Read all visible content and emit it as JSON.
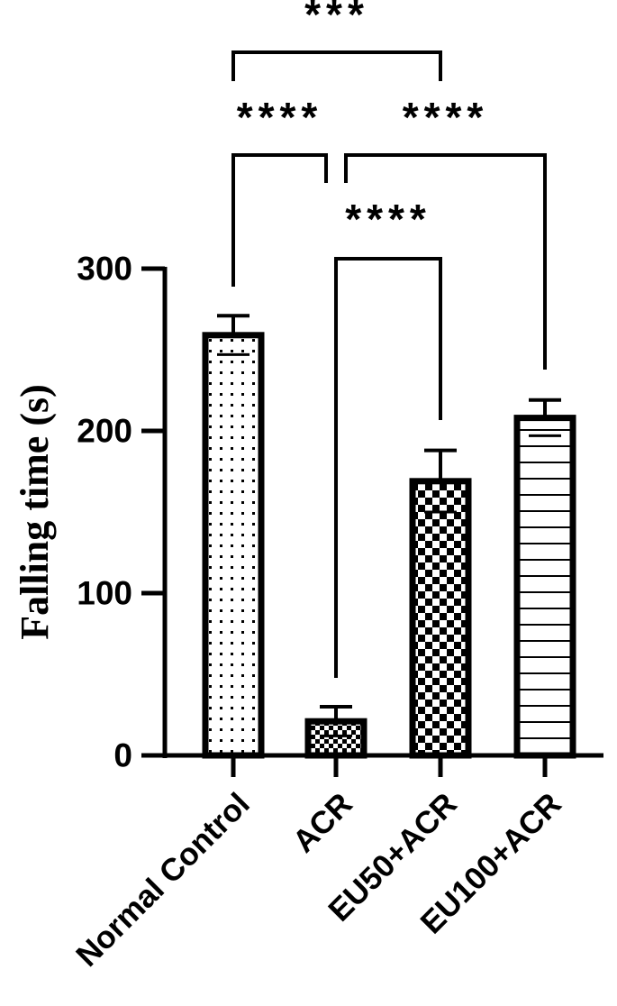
{
  "chart_data": {
    "type": "bar",
    "title": "",
    "xlabel": "",
    "ylabel": "Falling time (s)",
    "ylim": [
      0,
      300
    ],
    "yticks": [
      "0",
      "100",
      "200",
      "300"
    ],
    "categories": [
      "Normal Control",
      "ACR",
      "EU50+ACR",
      "EU100+ACR"
    ],
    "values": [
      259,
      21,
      169,
      208
    ],
    "errors": [
      12,
      9,
      19,
      11
    ],
    "patterns": [
      "dots",
      "checker-fine",
      "checker-coarse",
      "horizontal-lines"
    ],
    "significance": [
      {
        "from": "Normal Control",
        "to": "EU50+ACR",
        "label": "***"
      },
      {
        "from": "Normal Control",
        "to": "ACR",
        "label": "****"
      },
      {
        "from": "ACR",
        "to": "EU100+ACR",
        "label": "****"
      },
      {
        "from": "ACR",
        "to": "EU50+ACR",
        "label": "****"
      }
    ],
    "colors": {
      "bar_stroke": "#000000",
      "bar_fill": "#ffffff",
      "axis": "#000000"
    }
  }
}
